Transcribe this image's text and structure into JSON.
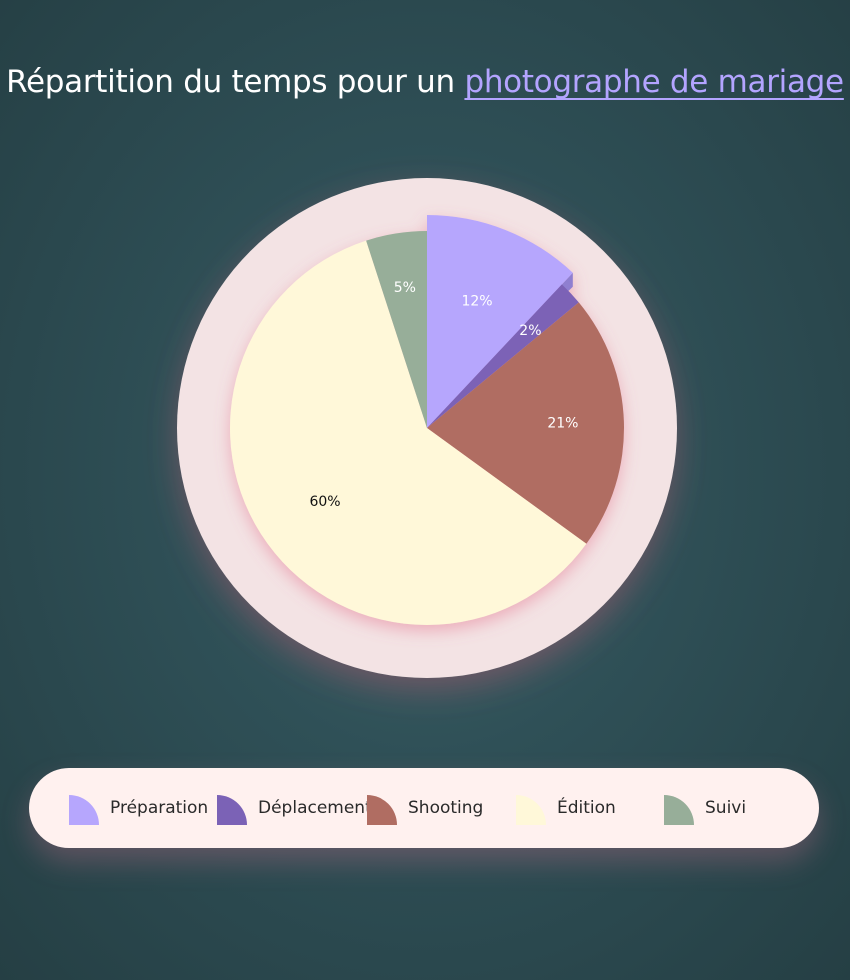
{
  "title": {
    "prefix": "Répartition du temps pour un ",
    "highlight": "photographe de mariage",
    "highlight_color": "#b3a4ff"
  },
  "chart_data": {
    "type": "pie",
    "title": "Répartition du temps pour un photographe de mariage",
    "unit": "%",
    "slices": [
      {
        "label": "Préparation",
        "value": 12,
        "display": "12%",
        "color": "#b6a6fd",
        "label_color": "#ffffff"
      },
      {
        "label": "Déplacement",
        "value": 2,
        "display": "2%",
        "color": "#7b62b6",
        "label_color": "#ffffff"
      },
      {
        "label": "Shooting",
        "value": 21,
        "display": "21%",
        "color": "#b06d62",
        "label_color": "#ffffff"
      },
      {
        "label": "Édition",
        "value": 60,
        "display": "60%",
        "color": "#fff8d9",
        "label_color": "#111111"
      },
      {
        "label": "Suivi",
        "value": 5,
        "display": "5%",
        "color": "#97ae99",
        "label_color": "#ffffff"
      }
    ],
    "start_angle": "12 o'clock",
    "direction": "clockwise",
    "exploded_slice": "Préparation",
    "ring_color": "#f3e3e4",
    "legend_placement": "bottom"
  }
}
